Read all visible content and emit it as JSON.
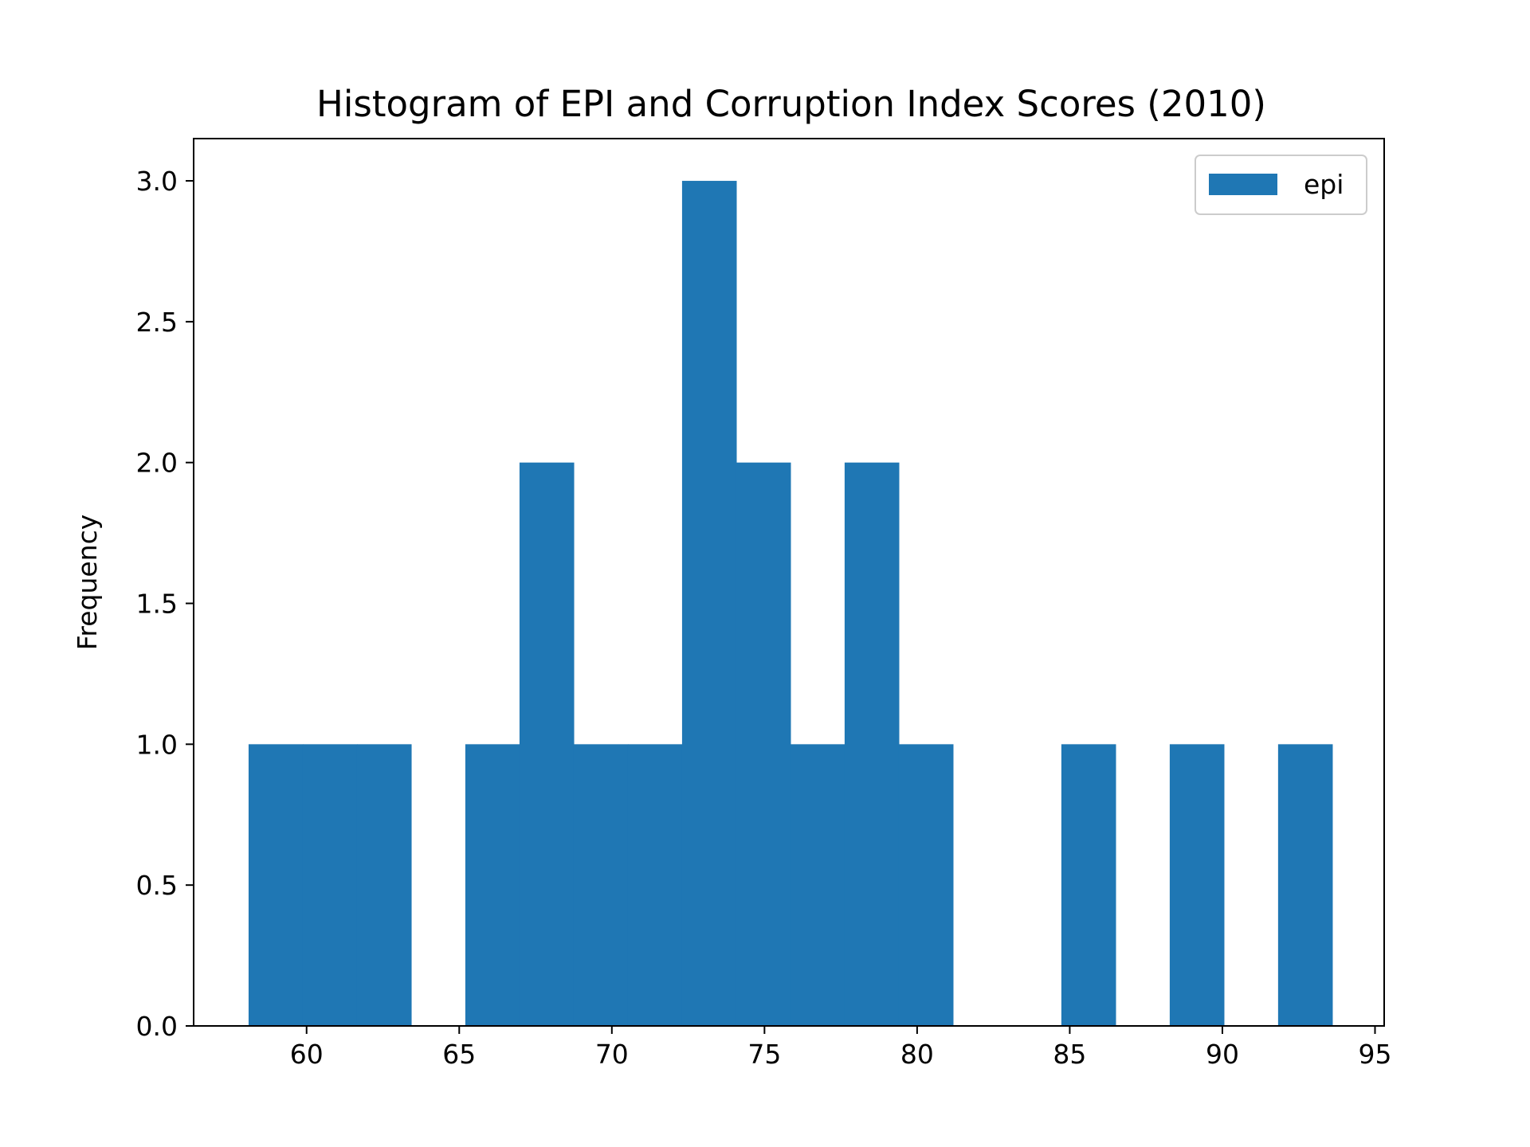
{
  "chart_data": {
    "type": "bar",
    "title": "Histogram of EPI and Corruption Index Scores (2010)",
    "xlabel": "",
    "ylabel": "Frequency",
    "xlim": [
      56.3,
      95.3
    ],
    "ylim": [
      0,
      3.15
    ],
    "xticks": [
      60,
      65,
      70,
      75,
      80,
      85,
      90,
      95
    ],
    "yticks": [
      0.0,
      0.5,
      1.0,
      1.5,
      2.0,
      2.5,
      3.0
    ],
    "xtick_labels": [
      "60",
      "65",
      "70",
      "75",
      "80",
      "85",
      "90",
      "95"
    ],
    "ytick_labels": [
      "0.0",
      "0.5",
      "1.0",
      "1.5",
      "2.0",
      "2.5",
      "3.0"
    ],
    "grid": false,
    "legend_position": "top-right",
    "series": [
      {
        "name": "epi",
        "color": "#1f77b4",
        "bin_edges": [
          58.1,
          59.875,
          61.65,
          63.425,
          65.2,
          66.975,
          68.75,
          70.525,
          72.3,
          74.075,
          75.85,
          77.625,
          79.4,
          81.175,
          82.95,
          84.725,
          86.5,
          88.275,
          90.05,
          91.825,
          93.6
        ],
        "counts": [
          1,
          1,
          1,
          0,
          1,
          2,
          1,
          1,
          3,
          2,
          1,
          2,
          1,
          0,
          0,
          1,
          0,
          1,
          0,
          1
        ]
      }
    ]
  }
}
